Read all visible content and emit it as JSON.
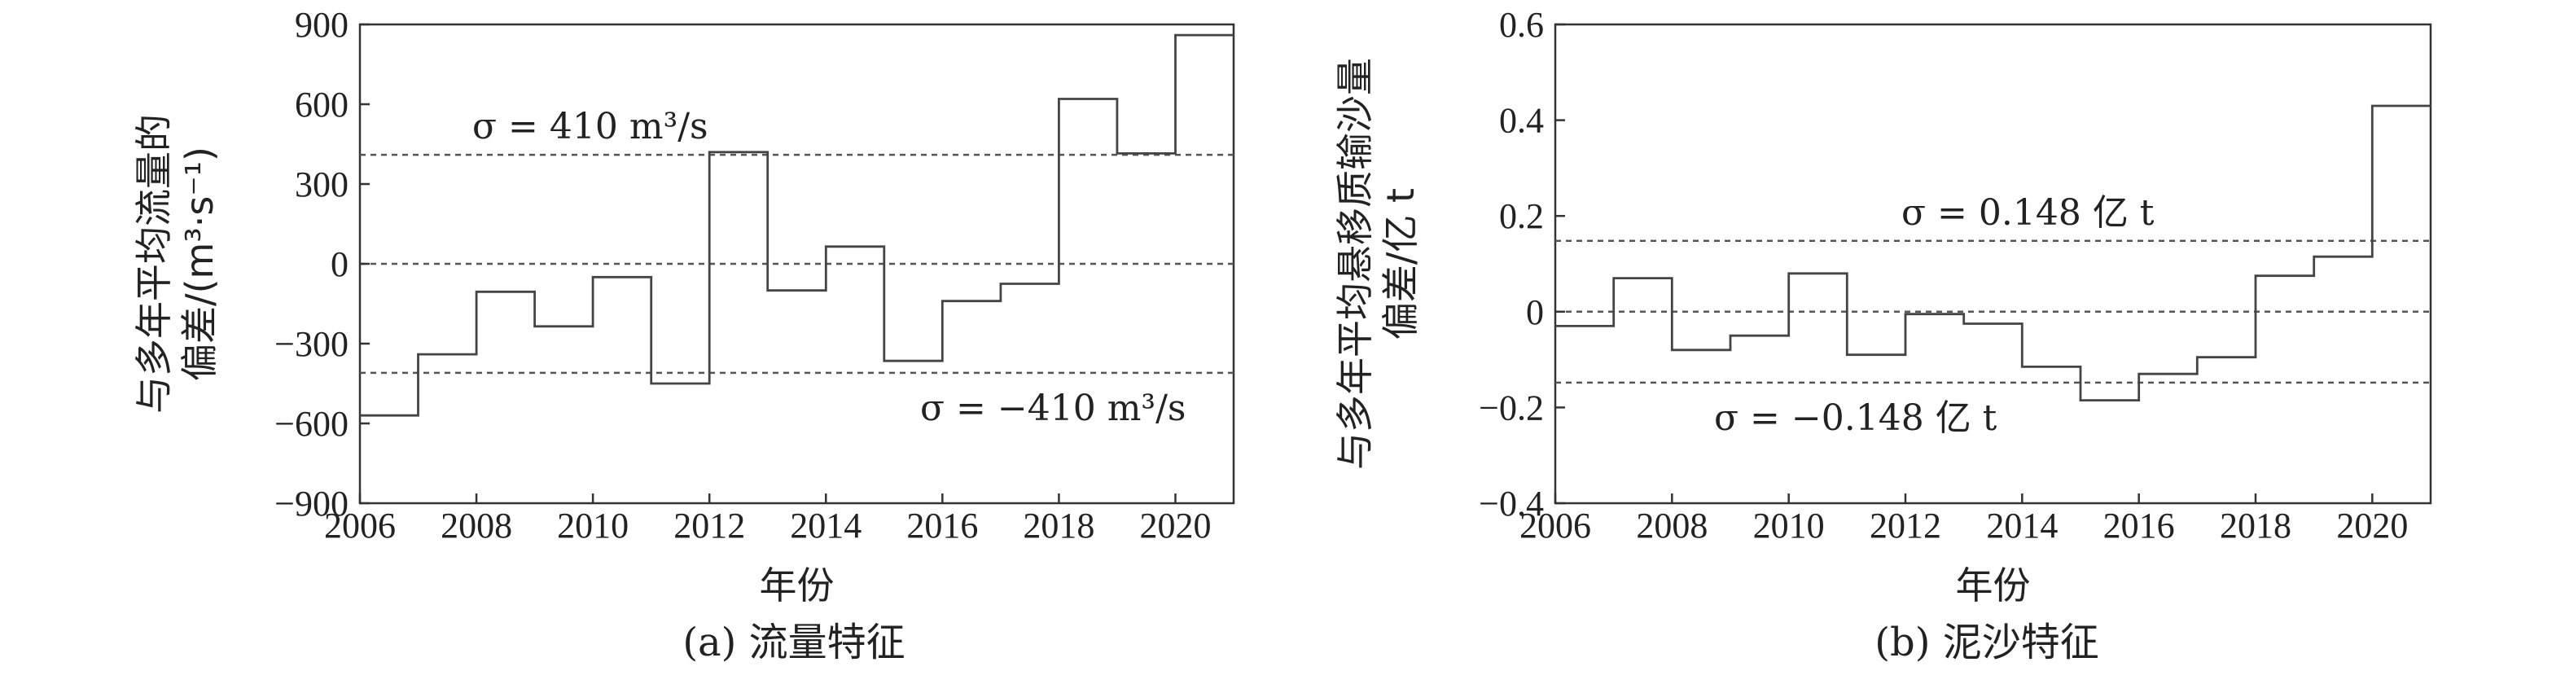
{
  "chart_data": [
    {
      "type": "line",
      "subtype": "step",
      "caption": "(a) 流量特征",
      "xlabel": "年份",
      "ylabel": "与多年平均流量的偏差/(m³·s⁻¹)",
      "xlim": [
        2006,
        2021
      ],
      "ylim": [
        -900,
        900
      ],
      "xticks": [
        2006,
        2008,
        2010,
        2012,
        2014,
        2016,
        2018,
        2020
      ],
      "yticks": [
        -900,
        -600,
        -300,
        0,
        300,
        600,
        900
      ],
      "ytick_labels": [
        "−900",
        "−600",
        "−300",
        "0",
        "300",
        "600",
        "900"
      ],
      "grid": false,
      "x": [
        2006,
        2007,
        2008,
        2009,
        2010,
        2011,
        2012,
        2013,
        2014,
        2015,
        2016,
        2017,
        2018,
        2019,
        2020
      ],
      "values": [
        -570,
        -340,
        -105,
        -235,
        -50,
        -450,
        420,
        -100,
        65,
        -365,
        -140,
        -75,
        620,
        415,
        860
      ],
      "reference_lines": [
        {
          "y": 410,
          "label": "σ = 410 m³/s"
        },
        {
          "y": 0,
          "label": ""
        },
        {
          "y": -410,
          "label": "σ = −410 m³/s"
        }
      ]
    },
    {
      "type": "line",
      "subtype": "step",
      "caption": "(b) 泥沙特征",
      "xlabel": "年份",
      "ylabel": "与多年平均悬移质输沙量偏差/亿 t",
      "xlim": [
        2006,
        2021
      ],
      "ylim": [
        -0.4,
        0.6
      ],
      "xticks": [
        2006,
        2008,
        2010,
        2012,
        2014,
        2016,
        2018,
        2020
      ],
      "yticks": [
        -0.4,
        -0.2,
        0,
        0.2,
        0.4,
        0.6
      ],
      "ytick_labels": [
        "−0.4",
        "−0.2",
        "0",
        "0.2",
        "0.4",
        "0.6"
      ],
      "grid": false,
      "x": [
        2006,
        2007,
        2008,
        2009,
        2010,
        2011,
        2012,
        2013,
        2014,
        2015,
        2016,
        2017,
        2018,
        2019,
        2020
      ],
      "values": [
        -0.03,
        0.07,
        -0.08,
        -0.05,
        0.08,
        -0.09,
        -0.005,
        -0.025,
        -0.115,
        -0.185,
        -0.13,
        -0.095,
        0.075,
        0.115,
        0.43
      ],
      "reference_lines": [
        {
          "y": 0.148,
          "label": "σ = 0.148 亿 t"
        },
        {
          "y": 0,
          "label": ""
        },
        {
          "y": -0.148,
          "label": "σ = −0.148 亿 t"
        }
      ]
    }
  ]
}
